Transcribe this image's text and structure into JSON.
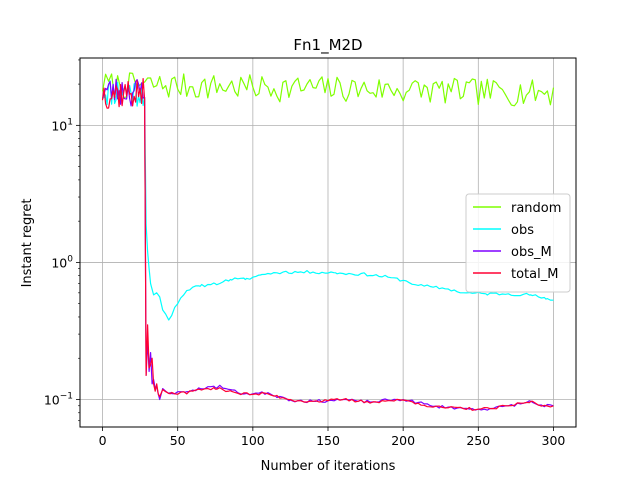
{
  "chart_data": {
    "type": "line",
    "title": "Fn1_M2D",
    "xlabel": "Number of iterations",
    "ylabel": "Instant regret",
    "yscale": "log",
    "xlim": [
      -15,
      315
    ],
    "ylim": [
      0.063,
      31
    ],
    "grid": true,
    "legend_position": "right",
    "x_ticks": [
      {
        "value": 0,
        "label": "0"
      },
      {
        "value": 50,
        "label": "50"
      },
      {
        "value": 100,
        "label": "100"
      },
      {
        "value": 150,
        "label": "150"
      },
      {
        "value": 200,
        "label": "200"
      },
      {
        "value": 250,
        "label": "250"
      },
      {
        "value": 300,
        "label": "300"
      }
    ],
    "y_ticks": [
      {
        "value": 0.1,
        "base": "10",
        "exp": "−1"
      },
      {
        "value": 1,
        "base": "10",
        "exp": "0"
      },
      {
        "value": 10,
        "base": "10",
        "exp": "1"
      }
    ],
    "series": [
      {
        "name": "random",
        "color": "#7fff00",
        "kind": "noisy",
        "seed": 7,
        "points": [
          [
            0,
            20
          ],
          [
            300,
            17.5
          ]
        ],
        "noise_min": 13,
        "noise_max": 24.5
      },
      {
        "name": "obs",
        "color": "#00ffff",
        "kind": "line",
        "noisy_until": 28,
        "noise_min": 13.5,
        "noise_max": 22.5,
        "seed": 11,
        "points": [
          [
            28,
            16
          ],
          [
            29,
            1.9
          ],
          [
            30,
            1.2
          ],
          [
            31,
            0.9
          ],
          [
            32,
            0.7
          ],
          [
            34,
            0.58
          ],
          [
            36,
            0.6
          ],
          [
            38,
            0.56
          ],
          [
            40,
            0.45
          ],
          [
            42,
            0.42
          ],
          [
            44,
            0.38
          ],
          [
            46,
            0.41
          ],
          [
            48,
            0.47
          ],
          [
            50,
            0.5
          ],
          [
            52,
            0.55
          ],
          [
            55,
            0.6
          ],
          [
            58,
            0.63
          ],
          [
            60,
            0.66
          ],
          [
            65,
            0.67
          ],
          [
            70,
            0.69
          ],
          [
            75,
            0.7
          ],
          [
            80,
            0.72
          ],
          [
            85,
            0.75
          ],
          [
            90,
            0.76
          ],
          [
            95,
            0.75
          ],
          [
            100,
            0.78
          ],
          [
            105,
            0.81
          ],
          [
            110,
            0.83
          ],
          [
            120,
            0.85
          ],
          [
            140,
            0.85
          ],
          [
            155,
            0.84
          ],
          [
            160,
            0.83
          ],
          [
            175,
            0.82
          ],
          [
            190,
            0.78
          ],
          [
            200,
            0.74
          ],
          [
            210,
            0.68
          ],
          [
            220,
            0.66
          ],
          [
            230,
            0.64
          ],
          [
            240,
            0.6
          ],
          [
            255,
            0.59
          ],
          [
            270,
            0.59
          ],
          [
            285,
            0.58
          ],
          [
            290,
            0.56
          ],
          [
            295,
            0.54
          ],
          [
            300,
            0.53
          ]
        ]
      },
      {
        "name": "obs_M",
        "color": "#7f00ff",
        "kind": "line",
        "noisy_until": 28,
        "noise_min": 13.5,
        "noise_max": 22.5,
        "seed": 23,
        "points": [
          [
            28,
            16
          ],
          [
            29,
            0.15
          ],
          [
            30,
            0.27
          ],
          [
            31,
            0.16
          ],
          [
            32,
            0.22
          ],
          [
            33,
            0.13
          ],
          [
            34,
            0.14
          ],
          [
            35,
            0.12
          ],
          [
            36,
            0.125
          ],
          [
            37,
            0.11
          ],
          [
            38,
            0.1
          ],
          [
            40,
            0.12
          ],
          [
            42,
            0.115
          ],
          [
            45,
            0.112
          ],
          [
            48,
            0.11
          ],
          [
            52,
            0.114
          ],
          [
            55,
            0.113
          ],
          [
            60,
            0.117
          ],
          [
            65,
            0.12
          ],
          [
            70,
            0.124
          ],
          [
            75,
            0.122
          ],
          [
            78,
            0.127
          ],
          [
            80,
            0.121
          ],
          [
            85,
            0.118
          ],
          [
            90,
            0.112
          ],
          [
            100,
            0.11
          ],
          [
            110,
            0.112
          ],
          [
            115,
            0.106
          ],
          [
            120,
            0.104
          ],
          [
            125,
            0.099
          ],
          [
            130,
            0.098
          ],
          [
            140,
            0.097
          ],
          [
            150,
            0.098
          ],
          [
            160,
            0.1
          ],
          [
            170,
            0.097
          ],
          [
            180,
            0.096
          ],
          [
            190,
            0.099
          ],
          [
            200,
            0.1
          ],
          [
            210,
            0.095
          ],
          [
            220,
            0.089
          ],
          [
            230,
            0.088
          ],
          [
            240,
            0.086
          ],
          [
            250,
            0.085
          ],
          [
            260,
            0.086
          ],
          [
            270,
            0.09
          ],
          [
            280,
            0.094
          ],
          [
            285,
            0.097
          ],
          [
            290,
            0.091
          ],
          [
            300,
            0.09
          ]
        ]
      },
      {
        "name": "total_M",
        "color": "#ff0033",
        "kind": "line",
        "noisy_until": 28,
        "noise_min": 13,
        "noise_max": 22,
        "seed": 37,
        "points": [
          [
            28,
            15.5
          ],
          [
            29,
            0.15
          ],
          [
            30,
            0.35
          ],
          [
            31,
            0.17
          ],
          [
            32,
            0.18
          ],
          [
            33,
            0.2
          ],
          [
            34,
            0.13
          ],
          [
            35,
            0.115
          ],
          [
            36,
            0.13
          ],
          [
            37,
            0.11
          ],
          [
            38,
            0.105
          ],
          [
            40,
            0.118
          ],
          [
            42,
            0.114
          ],
          [
            45,
            0.11
          ],
          [
            48,
            0.11
          ],
          [
            52,
            0.113
          ],
          [
            55,
            0.112
          ],
          [
            60,
            0.115
          ],
          [
            65,
            0.118
          ],
          [
            70,
            0.12
          ],
          [
            75,
            0.119
          ],
          [
            78,
            0.122
          ],
          [
            80,
            0.118
          ],
          [
            85,
            0.116
          ],
          [
            90,
            0.111
          ],
          [
            100,
            0.109
          ],
          [
            110,
            0.11
          ],
          [
            115,
            0.106
          ],
          [
            120,
            0.103
          ],
          [
            125,
            0.1
          ],
          [
            130,
            0.098
          ],
          [
            140,
            0.097
          ],
          [
            150,
            0.098
          ],
          [
            160,
            0.1
          ],
          [
            170,
            0.097
          ],
          [
            180,
            0.096
          ],
          [
            190,
            0.098
          ],
          [
            200,
            0.099
          ],
          [
            210,
            0.094
          ],
          [
            220,
            0.088
          ],
          [
            230,
            0.087
          ],
          [
            240,
            0.086
          ],
          [
            250,
            0.085
          ],
          [
            260,
            0.086
          ],
          [
            270,
            0.09
          ],
          [
            280,
            0.094
          ],
          [
            285,
            0.097
          ],
          [
            290,
            0.091
          ],
          [
            300,
            0.09
          ]
        ]
      }
    ]
  }
}
